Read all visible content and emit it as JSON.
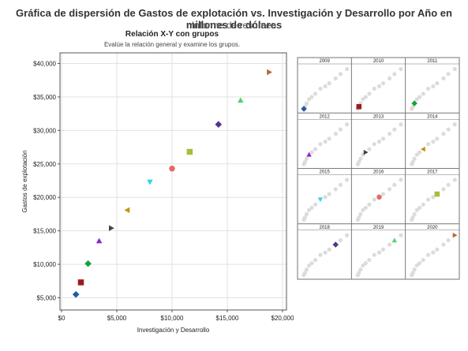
{
  "header": {
    "title": "Gráfica de dispersión de Gastos de explotación vs. Investigación y Desarrollo por Año en millones de dólares",
    "subtitle": "Informe de resumen"
  },
  "panel": {
    "title": "Relación X-Y con grupos",
    "subtitle": "Evalúe la relación general y examine los grupos."
  },
  "chart_data": {
    "type": "scatter",
    "xlabel": "Investigación y Desarrollo",
    "ylabel": "Gastos de explotación",
    "xlim": [
      0,
      20000
    ],
    "ylim": [
      4000,
      41000
    ],
    "x_ticks": [
      "$0",
      "$5,000",
      "$10,000",
      "$15,000",
      "$20,000"
    ],
    "y_ticks": [
      "$5,000",
      "$10,000",
      "$15,000",
      "$20,000",
      "$25,000",
      "$30,000",
      "$35,000",
      "$40,000"
    ],
    "x_tick_values": [
      0,
      5000,
      10000,
      15000,
      20000
    ],
    "y_tick_values": [
      5000,
      10000,
      15000,
      20000,
      25000,
      30000,
      35000,
      40000
    ],
    "grid": true,
    "series": [
      {
        "name": "2009",
        "x": 1300,
        "y": 5500,
        "marker": "diamond",
        "color": "#1f5aa6"
      },
      {
        "name": "2010",
        "x": 1750,
        "y": 7300,
        "marker": "square",
        "color": "#9c1b1b"
      },
      {
        "name": "2011",
        "x": 2400,
        "y": 10100,
        "marker": "diamond",
        "color": "#13a538"
      },
      {
        "name": "2012",
        "x": 3400,
        "y": 13500,
        "marker": "triangle-up",
        "color": "#8e24c9"
      },
      {
        "name": "2013",
        "x": 4500,
        "y": 15400,
        "marker": "triangle-right",
        "color": "#444444"
      },
      {
        "name": "2014",
        "x": 5950,
        "y": 18100,
        "marker": "triangle-left",
        "color": "#c8910f"
      },
      {
        "name": "2015",
        "x": 8000,
        "y": 22300,
        "marker": "triangle-down",
        "color": "#2fd3e6"
      },
      {
        "name": "2016",
        "x": 10000,
        "y": 24300,
        "marker": "circle",
        "color": "#e56a66"
      },
      {
        "name": "2017",
        "x": 11600,
        "y": 26800,
        "marker": "square",
        "color": "#a5bf3a"
      },
      {
        "name": "2018",
        "x": 14200,
        "y": 30900,
        "marker": "diamond",
        "color": "#56328f"
      },
      {
        "name": "2019",
        "x": 16200,
        "y": 34500,
        "marker": "triangle-up",
        "color": "#52d36a"
      },
      {
        "name": "2020",
        "x": 18800,
        "y": 38700,
        "marker": "triangle-right",
        "color": "#b5663a"
      }
    ]
  }
}
